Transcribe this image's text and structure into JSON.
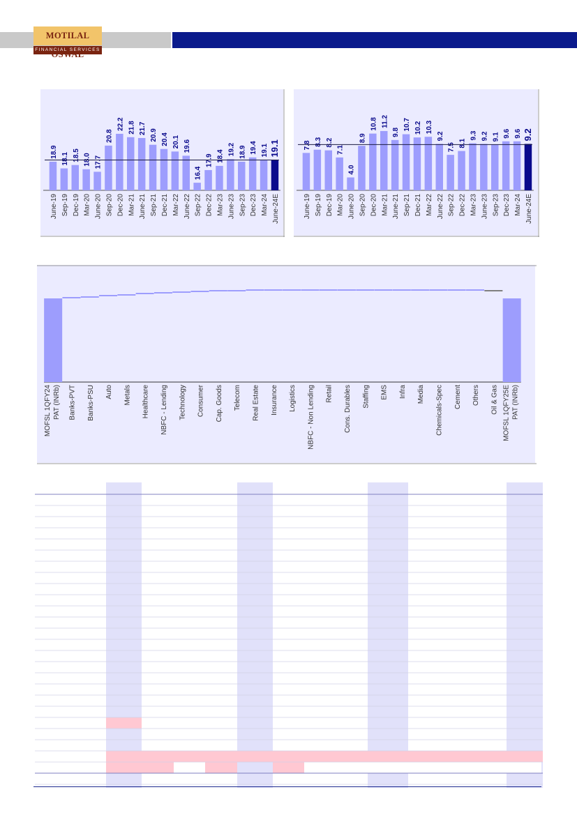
{
  "header": {
    "logo_top": "MOTILAL OSWAL",
    "logo_bottom": "FINANCIAL SERVICES",
    "colors": {
      "grey_band": "#c9c9c9",
      "navy_band": "#0a1a8c",
      "logo_gold": "#f2c46a",
      "logo_maroon": "#7a2410"
    }
  },
  "chart_data": [
    {
      "type": "bar",
      "categories": [
        "June-19",
        "Sep-19",
        "Dec-19",
        "Mar-20",
        "June-20",
        "Sep-20",
        "Dec-20",
        "Mar-21",
        "June-21",
        "Sep-21",
        "Dec-21",
        "Mar-22",
        "June-22",
        "Sep-22",
        "Dec-22",
        "Mar-23",
        "June-23",
        "Sep-23",
        "Dec-23",
        "Mar-24",
        "June-24E"
      ],
      "values": [
        18.9,
        18.1,
        18.5,
        18.0,
        17.7,
        20.8,
        22.2,
        21.8,
        21.7,
        20.9,
        20.4,
        20.1,
        19.6,
        16.4,
        17.9,
        18.4,
        19.2,
        18.9,
        19.4,
        19.1,
        19.1
      ],
      "reference_line": 19.1,
      "colors": {
        "bar": "#9d9dfd",
        "highlight_bar": "#0a0a8c",
        "label": "#0a0a8c",
        "panel": "#ebebff"
      }
    },
    {
      "type": "bar",
      "categories": [
        "June-19",
        "Sep-19",
        "Dec-19",
        "Mar-20",
        "June-20",
        "Sep-20",
        "Dec-20",
        "Mar-21",
        "June-21",
        "Sep-21",
        "Dec-21",
        "Mar-22",
        "June-22",
        "Sep-22",
        "Dec-22",
        "Mar-23",
        "June-23",
        "Sep-23",
        "Dec-23",
        "Mar-24",
        "June-24E"
      ],
      "values": [
        7.8,
        8.3,
        8.2,
        7.1,
        4.0,
        8.9,
        10.8,
        11.2,
        9.8,
        10.7,
        10.2,
        10.3,
        9.2,
        7.5,
        8.1,
        9.3,
        9.2,
        9.1,
        9.6,
        9.6,
        9.2
      ],
      "reference_line": 9.1,
      "colors": {
        "bar": "#9d9dfd",
        "highlight_bar": "#0a0a8c",
        "label": "#0a0a8c",
        "panel": "#ebebff"
      }
    },
    {
      "type": "bar",
      "subtype": "waterfall",
      "categories": [
        "MOFSL 1QFY24 PAT (INRb)",
        "Banks-PVT",
        "Banks-PSU",
        "Auto",
        "Metals",
        "Healthcare",
        "NBFC - Lending",
        "Technology",
        "Consumer",
        "Cap. Goods",
        "Telecom",
        "Real Estate",
        "Insurance",
        "Logistics",
        "NBFC - Non Lending",
        "Retail",
        "Cons. Durables",
        "Staffing",
        "EMS",
        "Infra",
        "Media",
        "Chemicals-Spec",
        "Cement",
        "Others",
        "Oil & Gas",
        "MOFSL 1QFY25E PAT (INRb)"
      ],
      "colors": {
        "total_bar": "#9d9dfd",
        "positive_bar": "#9d9dfd",
        "negative_bar": "#7f7f7f",
        "panel": "#ebebff"
      }
    }
  ],
  "table": {
    "row_count": 27,
    "shaded_columns": [
      1,
      5,
      9,
      13
    ],
    "colors": {
      "band": "#e1e1fa",
      "pink": "#ffc8d2",
      "line": "#d0d0e6",
      "rule": "#8080c0"
    }
  }
}
